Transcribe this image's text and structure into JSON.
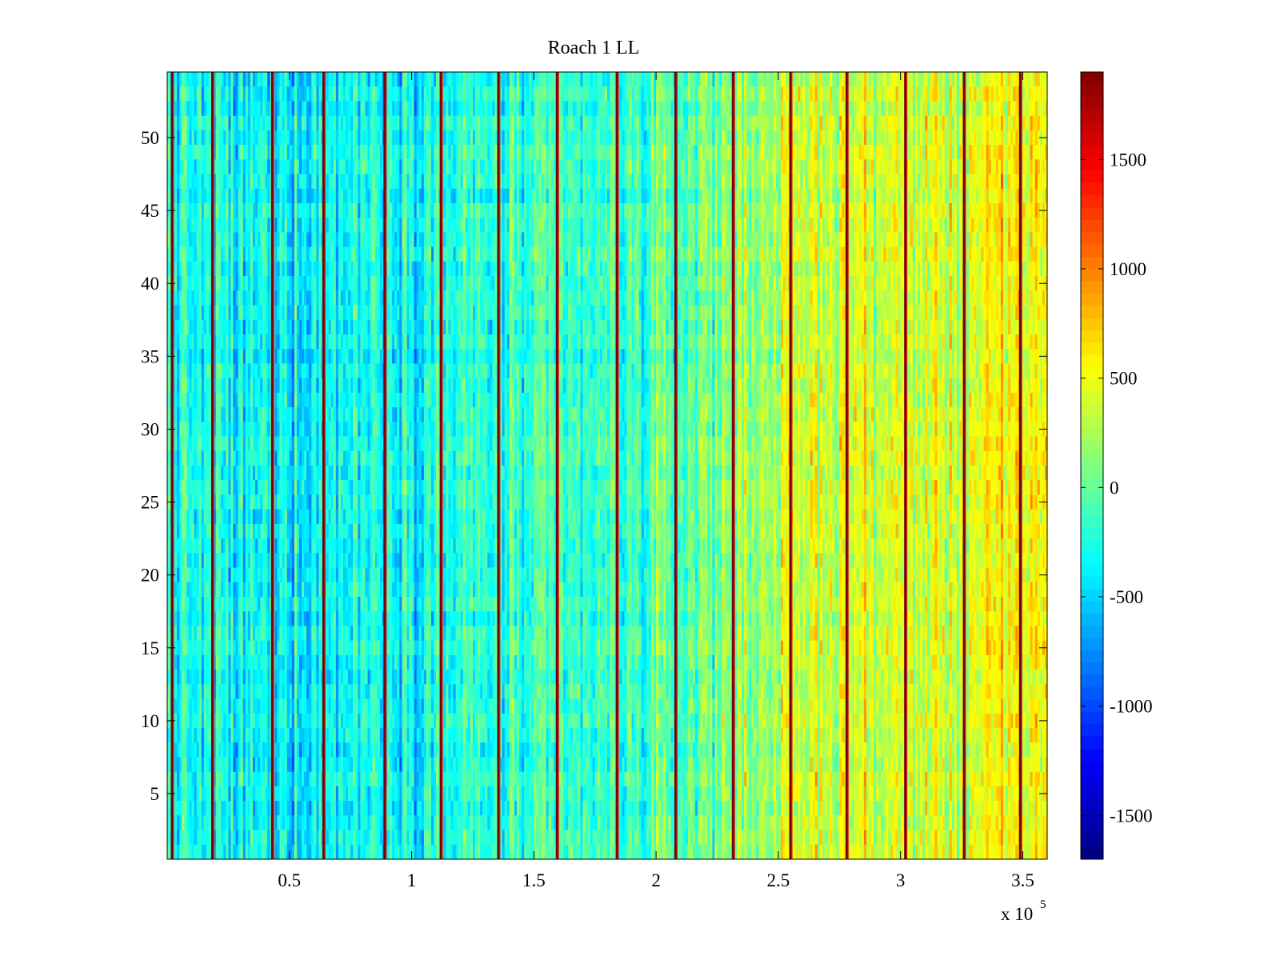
{
  "chart_data": {
    "type": "heatmap",
    "title": "Roach 1 LL",
    "colormap": "jet",
    "grid": false,
    "x": {
      "range": [
        0,
        360000
      ],
      "ticks": [
        50000,
        100000,
        150000,
        200000,
        250000,
        300000,
        350000
      ],
      "tick_labels": [
        "0.5",
        "1",
        "1.5",
        "2",
        "2.5",
        "3",
        "3.5"
      ],
      "exponent_label_prefix": "x 10",
      "exponent_label_power": "5"
    },
    "y": {
      "range": [
        0.5,
        54.5
      ],
      "ticks": [
        5,
        10,
        15,
        20,
        25,
        30,
        35,
        40,
        45,
        50
      ],
      "tick_labels": [
        "5",
        "10",
        "15",
        "20",
        "25",
        "30",
        "35",
        "40",
        "45",
        "50"
      ],
      "rows": 54
    },
    "colorbar": {
      "position": "right",
      "range": [
        -1700,
        1900
      ],
      "ticks": [
        -1500,
        -1000,
        -500,
        0,
        500,
        1000,
        1500
      ],
      "tick_labels": [
        "-1500",
        "-1000",
        "-500",
        "0",
        "500",
        "1000",
        "1500"
      ]
    },
    "mean_profile": {
      "x": [
        0,
        30000,
        60000,
        90000,
        120000,
        150000,
        180000,
        210000,
        240000,
        270000,
        300000,
        330000,
        360000
      ],
      "value": [
        -250,
        -380,
        -330,
        -250,
        -230,
        -210,
        -180,
        -60,
        250,
        420,
        380,
        450,
        560
      ]
    },
    "vertical_stripes_x": [
      2000,
      18500,
      43000,
      64000,
      89000,
      112000,
      135500,
      159500,
      184000,
      208000,
      231500,
      255000,
      278000,
      302000,
      326000,
      349000
    ]
  }
}
